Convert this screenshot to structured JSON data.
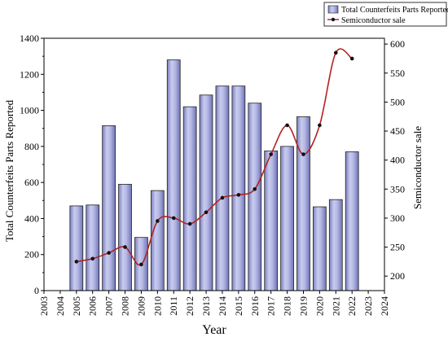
{
  "chart_data": {
    "type": "bar",
    "x": [
      2005,
      2006,
      2007,
      2008,
      2009,
      2010,
      2011,
      2012,
      2013,
      2014,
      2015,
      2016,
      2017,
      2018,
      2019,
      2020,
      2021,
      2022
    ],
    "series": [
      {
        "name": "Total Counterfeits Parts Reported",
        "type": "bar",
        "axis": "left",
        "values": [
          470,
          475,
          915,
          590,
          295,
          555,
          1280,
          1020,
          1085,
          1135,
          1135,
          1040,
          775,
          800,
          965,
          465,
          505,
          770
        ],
        "color": "#9fa3d6"
      },
      {
        "name": "Semiconductor sale",
        "type": "line",
        "axis": "right",
        "values": [
          225,
          230,
          240,
          250,
          220,
          295,
          300,
          290,
          310,
          335,
          340,
          350,
          410,
          460,
          410,
          460,
          585,
          575
        ],
        "color": "#b22222"
      }
    ],
    "xlabel": "Year",
    "ylabel": "Total Counterfeits Parts Reported",
    "y2label": "Semiconductor sale",
    "xlim": [
      2003,
      2024
    ],
    "ylim": [
      0,
      1400
    ],
    "y2lim": [
      175,
      610
    ],
    "xticks": [
      "2003",
      "2004",
      "2005",
      "2006",
      "2007",
      "2008",
      "2009",
      "2010",
      "2011",
      "2012",
      "2013",
      "2014",
      "2015",
      "2016",
      "2017",
      "2018",
      "2019",
      "2020",
      "2021",
      "2022",
      "2023",
      "2024"
    ],
    "yticks": [
      "0",
      "200",
      "400",
      "600",
      "800",
      "1000",
      "1200",
      "1400"
    ],
    "y2ticks": [
      "200",
      "250",
      "300",
      "350",
      "400",
      "450",
      "500",
      "550",
      "600"
    ],
    "legend_position": "top-right",
    "grid": false
  }
}
